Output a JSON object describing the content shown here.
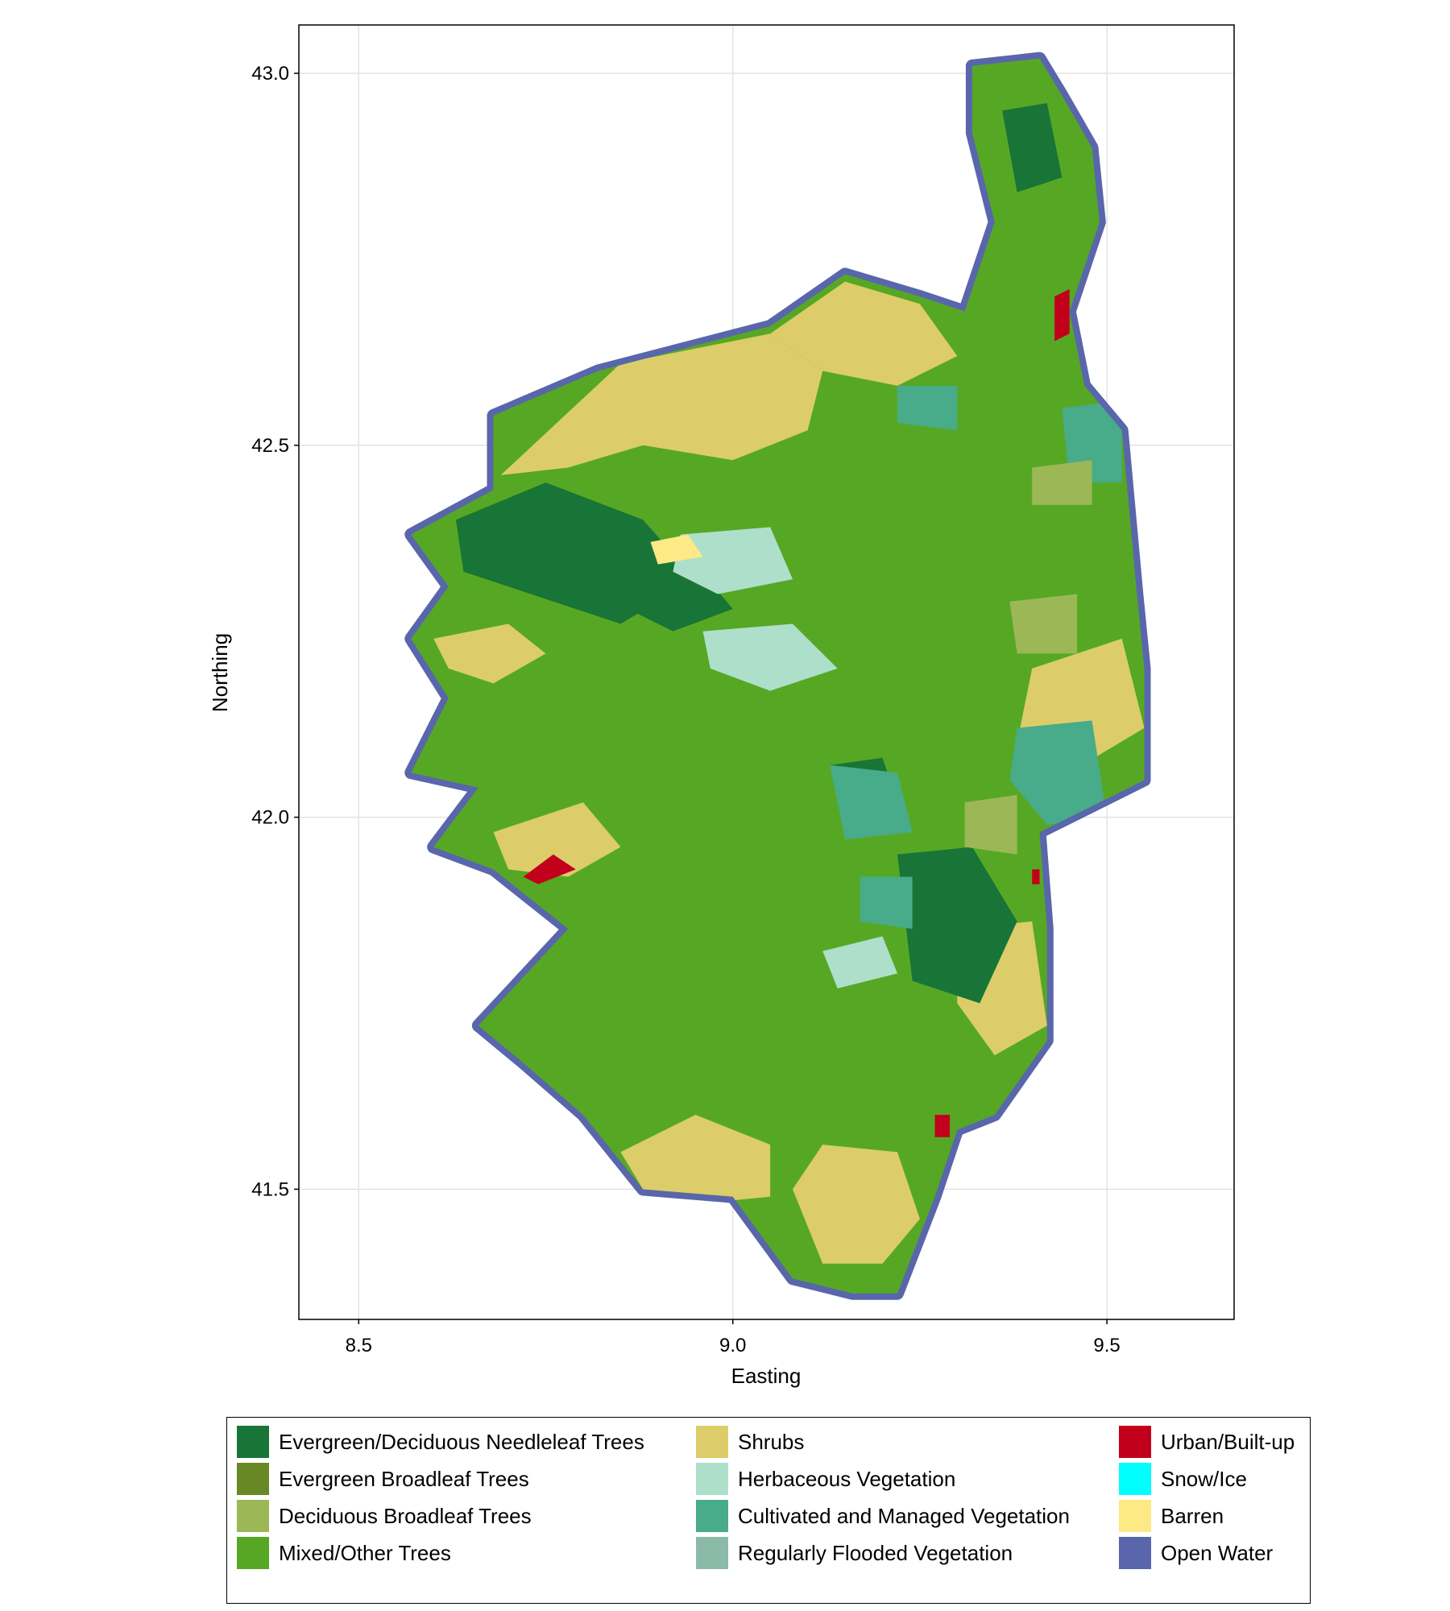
{
  "chart_data": {
    "type": "heatmap",
    "title": "",
    "xlabel": "Easting",
    "ylabel": "Northing",
    "xlim": [
      8.42,
      9.67
    ],
    "ylim": [
      41.325,
      43.065
    ],
    "xticks": [
      8.5,
      9.0,
      9.5
    ],
    "yticks": [
      41.5,
      42.0,
      42.5,
      43.0
    ],
    "xtick_labels": [
      "8.5",
      "9.0",
      "9.5"
    ],
    "ytick_labels": [
      "41.5",
      "42.0",
      "42.5",
      "43.0"
    ],
    "grid": true,
    "legend_position": "bottom",
    "categories": [
      {
        "name": "Evergreen/Deciduous Needleleaf Trees",
        "color": "#187537"
      },
      {
        "name": "Evergreen Broadleaf Trees",
        "color": "#688826"
      },
      {
        "name": "Deciduous Broadleaf Trees",
        "color": "#9cb856"
      },
      {
        "name": "Mixed/Other Trees",
        "color": "#56a824"
      },
      {
        "name": "Shrubs",
        "color": "#dccd6a"
      },
      {
        "name": "Herbaceous Vegetation",
        "color": "#aedfcb"
      },
      {
        "name": "Cultivated and Managed Vegetation",
        "color": "#48ab89"
      },
      {
        "name": "Regularly Flooded Vegetation",
        "color": "#8bbba8"
      },
      {
        "name": "Urban/Built-up",
        "color": "#c3001b"
      },
      {
        "name": "Snow/Ice",
        "color": "#00ffff"
      },
      {
        "name": "Barren",
        "color": "#fde985"
      },
      {
        "name": "Open Water",
        "color": "#5966ab"
      }
    ],
    "region_outline": [
      [
        9.32,
        43.01
      ],
      [
        9.41,
        43.02
      ],
      [
        9.44,
        42.97
      ],
      [
        9.48,
        42.9
      ],
      [
        9.49,
        42.8
      ],
      [
        9.45,
        42.68
      ],
      [
        9.47,
        42.58
      ],
      [
        9.52,
        42.52
      ],
      [
        9.54,
        42.3
      ],
      [
        9.55,
        42.2
      ],
      [
        9.55,
        42.05
      ],
      [
        9.41,
        41.98
      ],
      [
        9.42,
        41.85
      ],
      [
        9.42,
        41.7
      ],
      [
        9.35,
        41.6
      ],
      [
        9.3,
        41.58
      ],
      [
        9.27,
        41.49
      ],
      [
        9.22,
        41.36
      ],
      [
        9.16,
        41.36
      ],
      [
        9.08,
        41.38
      ],
      [
        9.0,
        41.49
      ],
      [
        8.88,
        41.5
      ],
      [
        8.8,
        41.6
      ],
      [
        8.72,
        41.67
      ],
      [
        8.66,
        41.72
      ],
      [
        8.78,
        41.85
      ],
      [
        8.68,
        41.93
      ],
      [
        8.6,
        41.96
      ],
      [
        8.66,
        42.04
      ],
      [
        8.57,
        42.06
      ],
      [
        8.62,
        42.16
      ],
      [
        8.57,
        42.24
      ],
      [
        8.62,
        42.31
      ],
      [
        8.57,
        42.38
      ],
      [
        8.68,
        42.44
      ],
      [
        8.68,
        42.54
      ],
      [
        8.82,
        42.6
      ],
      [
        9.05,
        42.66
      ],
      [
        9.15,
        42.73
      ],
      [
        9.25,
        42.7
      ],
      [
        9.31,
        42.68
      ],
      [
        9.35,
        42.8
      ],
      [
        9.32,
        42.92
      ]
    ],
    "regions": [
      {
        "category": "Evergreen/Deciduous Needleleaf Trees",
        "polygon": [
          [
            8.63,
            42.4
          ],
          [
            8.75,
            42.45
          ],
          [
            8.88,
            42.4
          ],
          [
            8.95,
            42.32
          ],
          [
            8.85,
            42.26
          ],
          [
            8.73,
            42.3
          ],
          [
            8.64,
            42.33
          ]
        ]
      },
      {
        "category": "Shrubs",
        "polygon": [
          [
            8.69,
            42.46
          ],
          [
            8.85,
            42.61
          ],
          [
            9.05,
            42.65
          ],
          [
            9.12,
            42.6
          ],
          [
            9.1,
            42.52
          ],
          [
            9.0,
            42.48
          ],
          [
            8.88,
            42.5
          ],
          [
            8.78,
            42.47
          ]
        ]
      },
      {
        "category": "Shrubs",
        "polygon": [
          [
            9.05,
            42.65
          ],
          [
            9.15,
            42.72
          ],
          [
            9.25,
            42.69
          ],
          [
            9.3,
            42.62
          ],
          [
            9.22,
            42.58
          ],
          [
            9.12,
            42.6
          ]
        ]
      },
      {
        "category": "Shrubs",
        "polygon": [
          [
            8.62,
            42.2
          ],
          [
            8.6,
            42.24
          ],
          [
            8.7,
            42.26
          ],
          [
            8.75,
            42.22
          ],
          [
            8.68,
            42.18
          ]
        ]
      },
      {
        "category": "Shrubs",
        "polygon": [
          [
            8.68,
            41.98
          ],
          [
            8.8,
            42.02
          ],
          [
            8.85,
            41.96
          ],
          [
            8.78,
            41.92
          ],
          [
            8.7,
            41.93
          ]
        ]
      },
      {
        "category": "Shrubs",
        "polygon": [
          [
            8.85,
            41.55
          ],
          [
            8.95,
            41.6
          ],
          [
            9.05,
            41.56
          ],
          [
            9.05,
            41.49
          ],
          [
            8.95,
            41.48
          ],
          [
            8.88,
            41.5
          ]
        ]
      },
      {
        "category": "Shrubs",
        "polygon": [
          [
            9.08,
            41.5
          ],
          [
            9.12,
            41.56
          ],
          [
            9.22,
            41.55
          ],
          [
            9.25,
            41.46
          ],
          [
            9.2,
            41.4
          ],
          [
            9.12,
            41.4
          ]
        ]
      },
      {
        "category": "Shrubs",
        "polygon": [
          [
            9.4,
            42.2
          ],
          [
            9.52,
            42.24
          ],
          [
            9.55,
            42.12
          ],
          [
            9.45,
            42.06
          ],
          [
            9.38,
            42.1
          ]
        ]
      },
      {
        "category": "Shrubs",
        "polygon": [
          [
            9.3,
            41.85
          ],
          [
            9.4,
            41.86
          ],
          [
            9.42,
            41.72
          ],
          [
            9.35,
            41.68
          ],
          [
            9.3,
            41.75
          ]
        ]
      },
      {
        "category": "Evergreen/Deciduous Needleleaf Trees",
        "polygon": [
          [
            9.22,
            41.95
          ],
          [
            9.32,
            41.96
          ],
          [
            9.38,
            41.86
          ],
          [
            9.33,
            41.75
          ],
          [
            9.24,
            41.78
          ]
        ]
      },
      {
        "category": "Evergreen/Deciduous Needleleaf Trees",
        "polygon": [
          [
            9.13,
            42.07
          ],
          [
            9.2,
            42.08
          ],
          [
            9.22,
            42.02
          ],
          [
            9.15,
            42.0
          ]
        ]
      },
      {
        "category": "Evergreen/Deciduous Needleleaf Trees",
        "polygon": [
          [
            9.36,
            42.95
          ],
          [
            9.42,
            42.96
          ],
          [
            9.44,
            42.86
          ],
          [
            9.38,
            42.84
          ]
        ]
      },
      {
        "category": "Evergreen/Deciduous Needleleaf Trees",
        "polygon": [
          [
            8.82,
            42.3
          ],
          [
            8.95,
            42.34
          ],
          [
            9.0,
            42.28
          ],
          [
            8.92,
            42.25
          ]
        ]
      },
      {
        "category": "Herbaceous Vegetation",
        "polygon": [
          [
            8.93,
            42.38
          ],
          [
            9.05,
            42.39
          ],
          [
            9.08,
            42.32
          ],
          [
            8.98,
            42.3
          ],
          [
            8.92,
            42.33
          ]
        ]
      },
      {
        "category": "Herbaceous Vegetation",
        "polygon": [
          [
            8.96,
            42.25
          ],
          [
            9.08,
            42.26
          ],
          [
            9.14,
            42.2
          ],
          [
            9.05,
            42.17
          ],
          [
            8.97,
            42.2
          ]
        ]
      },
      {
        "category": "Herbaceous Vegetation",
        "polygon": [
          [
            9.12,
            41.82
          ],
          [
            9.2,
            41.84
          ],
          [
            9.22,
            41.79
          ],
          [
            9.14,
            41.77
          ]
        ]
      },
      {
        "category": "Barren",
        "polygon": [
          [
            8.89,
            42.37
          ],
          [
            8.94,
            42.38
          ],
          [
            8.96,
            42.35
          ],
          [
            8.9,
            42.34
          ]
        ]
      },
      {
        "category": "Cultivated and Managed Vegetation",
        "polygon": [
          [
            9.44,
            42.55
          ],
          [
            9.52,
            42.56
          ],
          [
            9.52,
            42.45
          ],
          [
            9.45,
            42.45
          ]
        ]
      },
      {
        "category": "Cultivated and Managed Vegetation",
        "polygon": [
          [
            9.38,
            42.12
          ],
          [
            9.48,
            42.13
          ],
          [
            9.5,
            42.0
          ],
          [
            9.42,
            41.99
          ],
          [
            9.37,
            42.05
          ]
        ]
      },
      {
        "category": "Cultivated and Managed Vegetation",
        "polygon": [
          [
            9.13,
            42.07
          ],
          [
            9.22,
            42.06
          ],
          [
            9.24,
            41.98
          ],
          [
            9.15,
            41.97
          ]
        ]
      },
      {
        "category": "Cultivated and Managed Vegetation",
        "polygon": [
          [
            9.17,
            41.92
          ],
          [
            9.24,
            41.92
          ],
          [
            9.24,
            41.85
          ],
          [
            9.17,
            41.86
          ]
        ]
      },
      {
        "category": "Cultivated and Managed Vegetation",
        "polygon": [
          [
            9.22,
            42.58
          ],
          [
            9.3,
            42.58
          ],
          [
            9.3,
            42.52
          ],
          [
            9.22,
            42.53
          ]
        ]
      },
      {
        "category": "Deciduous Broadleaf Trees",
        "polygon": [
          [
            9.31,
            42.02
          ],
          [
            9.38,
            42.03
          ],
          [
            9.38,
            41.95
          ],
          [
            9.31,
            41.96
          ]
        ]
      },
      {
        "category": "Deciduous Broadleaf Trees",
        "polygon": [
          [
            9.37,
            42.29
          ],
          [
            9.46,
            42.3
          ],
          [
            9.46,
            42.22
          ],
          [
            9.38,
            42.22
          ]
        ]
      },
      {
        "category": "Deciduous Broadleaf Trees",
        "polygon": [
          [
            9.4,
            42.47
          ],
          [
            9.48,
            42.48
          ],
          [
            9.48,
            42.42
          ],
          [
            9.4,
            42.42
          ]
        ]
      },
      {
        "category": "Urban/Built-up",
        "polygon": [
          [
            9.43,
            42.7
          ],
          [
            9.45,
            42.71
          ],
          [
            9.45,
            42.65
          ],
          [
            9.43,
            42.64
          ]
        ]
      },
      {
        "category": "Urban/Built-up",
        "polygon": [
          [
            8.72,
            41.92
          ],
          [
            8.76,
            41.95
          ],
          [
            8.79,
            41.93
          ],
          [
            8.74,
            41.91
          ]
        ]
      },
      {
        "category": "Urban/Built-up",
        "polygon": [
          [
            9.4,
            41.93
          ],
          [
            9.41,
            41.93
          ],
          [
            9.41,
            41.91
          ],
          [
            9.4,
            41.91
          ]
        ]
      },
      {
        "category": "Urban/Built-up",
        "polygon": [
          [
            9.27,
            41.6
          ],
          [
            9.29,
            41.6
          ],
          [
            9.29,
            41.57
          ],
          [
            9.27,
            41.57
          ]
        ]
      }
    ]
  }
}
